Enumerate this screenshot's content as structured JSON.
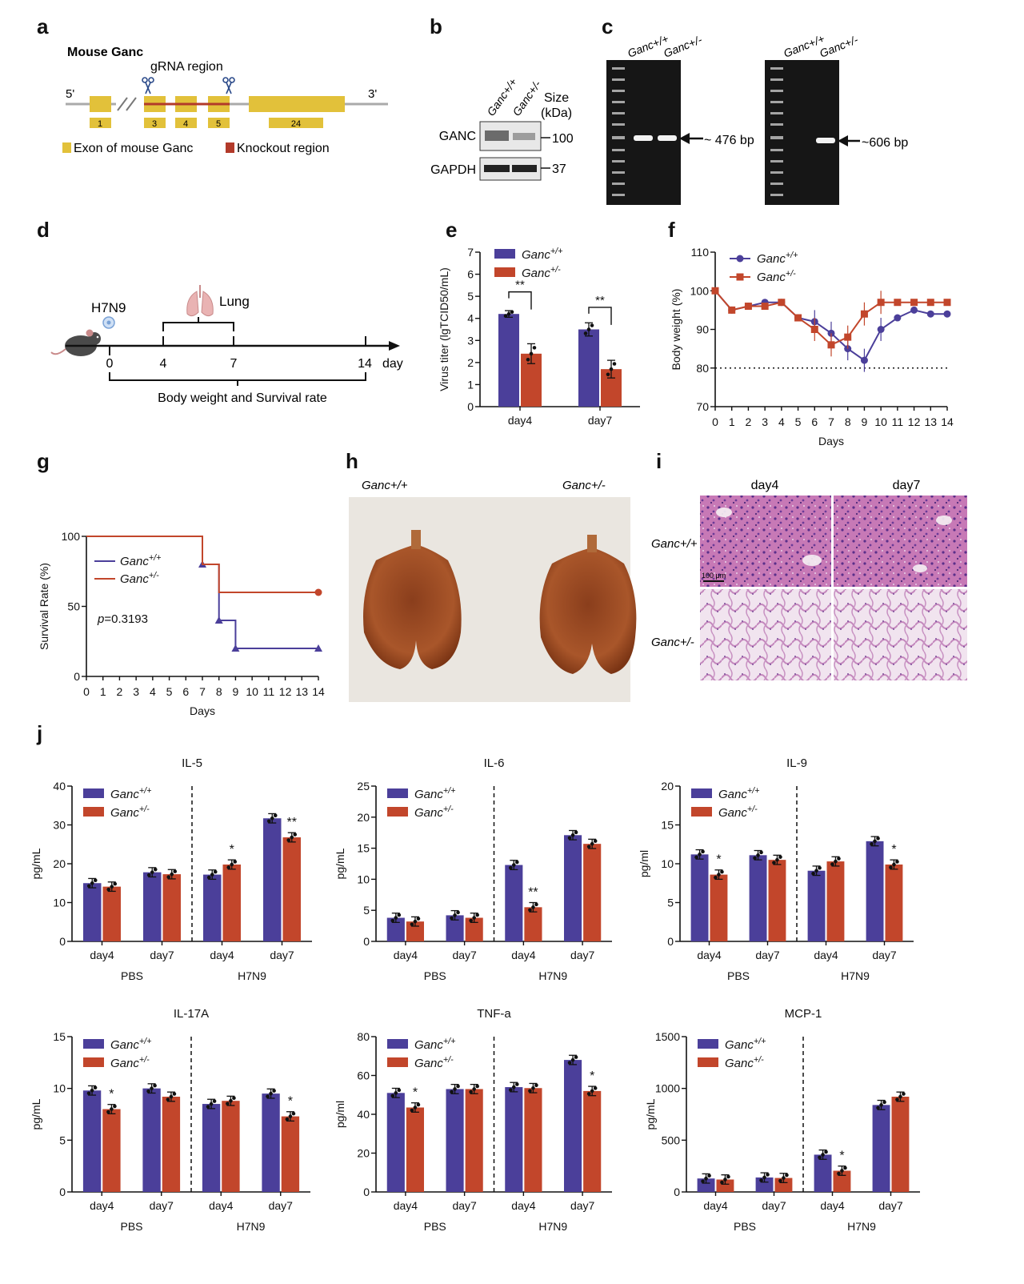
{
  "colors": {
    "wt": "#4b3f9a",
    "het": "#c2462b",
    "gel": "#161616",
    "band": "#f2f2f2"
  },
  "panel_labels": [
    "a",
    "b",
    "c",
    "d",
    "e",
    "f",
    "g",
    "h",
    "i",
    "j"
  ],
  "panel_a": {
    "title": "Mouse Ganc",
    "grna_label": "gRNA region",
    "five_prime": "5'",
    "three_prime": "3'",
    "exon_labels": [
      "1",
      "3",
      "4",
      "5",
      "24"
    ],
    "legend_exon": "Exon of  mouse Ganc",
    "legend_ko": "Knockout region"
  },
  "panel_b": {
    "lane_labels": [
      "Ganc+/+",
      "Ganc+/-"
    ],
    "size_header": [
      "Size",
      "(kDa)"
    ],
    "rows": [
      {
        "protein": "GANC",
        "size": "100"
      },
      {
        "protein": "GAPDH",
        "size": "37"
      }
    ]
  },
  "panel_c": {
    "gels": [
      {
        "lane_labels": [
          "Ganc+/+",
          "Ganc+/-"
        ],
        "band_label": "~ 476 bp"
      },
      {
        "lane_labels": [
          "Ganc+/+",
          "Ganc+/-"
        ],
        "band_label": "~606 bp"
      }
    ]
  },
  "panel_d": {
    "virus": "H7N9",
    "organ": "Lung",
    "ticks": [
      "0",
      "4",
      "7",
      "14"
    ],
    "unit": "day",
    "caption": "Body weight and Survival rate"
  },
  "genotype": {
    "base": "Ganc",
    "wt_sup": "+/+",
    "het_sup": "+/-"
  },
  "panel_h": {
    "labels": [
      "Ganc+/+",
      "Ganc+/-"
    ]
  },
  "panel_i": {
    "cols": [
      "day4",
      "day7"
    ],
    "rows": [
      "Ganc+/+",
      "Ganc+/-"
    ],
    "scale_bar": "100 μm"
  },
  "panel_j": {
    "group_labels": [
      "PBS",
      "H7N9"
    ]
  },
  "chart_data": [
    {
      "id": "e",
      "type": "bar",
      "title": "",
      "ylabel": "Virus titer (lgTCID50/mL)",
      "categories": [
        "day4",
        "day7"
      ],
      "series": [
        {
          "name": "Ganc+/+",
          "values": [
            4.2,
            3.5
          ]
        },
        {
          "name": "Ganc+/-",
          "values": [
            2.4,
            1.7
          ]
        }
      ],
      "errors": [
        [
          0.15,
          0.3
        ],
        [
          0.45,
          0.4
        ]
      ],
      "ylim": [
        0,
        7
      ],
      "yticks": [
        0,
        1,
        2,
        3,
        4,
        5,
        6,
        7
      ],
      "significance": [
        {
          "category": "day4",
          "label": "**"
        },
        {
          "category": "day7",
          "label": "**"
        }
      ]
    },
    {
      "id": "f",
      "type": "line",
      "title": "",
      "xlabel": "Days",
      "ylabel": "Body weight (%)",
      "x": [
        0,
        1,
        2,
        3,
        4,
        5,
        6,
        7,
        8,
        9,
        10,
        11,
        12,
        13,
        14
      ],
      "series": [
        {
          "name": "Ganc+/+",
          "values": [
            100,
            95,
            96,
            97,
            97,
            93,
            92,
            89,
            85,
            82,
            90,
            93,
            95,
            94,
            94
          ]
        },
        {
          "name": "Ganc+/-",
          "values": [
            100,
            95,
            96,
            96,
            97,
            93,
            90,
            86,
            88,
            94,
            97,
            97,
            97,
            97,
            97
          ]
        }
      ],
      "ylim": [
        70,
        110
      ],
      "yticks": [
        70,
        80,
        90,
        100,
        110
      ],
      "reference_line": 80
    },
    {
      "id": "g",
      "type": "line",
      "title": "",
      "xlabel": "Days",
      "ylabel": "Survival Rate (%)",
      "x": [
        0,
        1,
        2,
        3,
        4,
        5,
        6,
        7,
        8,
        9,
        10,
        11,
        12,
        13,
        14
      ],
      "series": [
        {
          "name": "Ganc+/+",
          "steps": [
            [
              0,
              100
            ],
            [
              7,
              80
            ],
            [
              8,
              40
            ],
            [
              9,
              20
            ],
            [
              14,
              20
            ]
          ]
        },
        {
          "name": "Ganc+/-",
          "steps": [
            [
              0,
              100
            ],
            [
              7,
              80
            ],
            [
              8,
              60
            ],
            [
              14,
              60
            ]
          ]
        }
      ],
      "ylim": [
        0,
        100
      ],
      "yticks": [
        0,
        50,
        100
      ],
      "annotation": "p=0.3193"
    },
    {
      "id": "j-il5",
      "type": "bar",
      "title": "IL-5",
      "ylabel": "pg/mL",
      "categories": [
        "day4",
        "day7",
        "day4",
        "day7"
      ],
      "series": [
        {
          "name": "Ganc+/+",
          "values": [
            15,
            17.8,
            17.2,
            31.7
          ]
        },
        {
          "name": "Ganc+/-",
          "values": [
            14.1,
            17.3,
            19.8,
            26.8
          ]
        }
      ],
      "ylim": [
        0,
        40
      ],
      "yticks": [
        0,
        10,
        20,
        30,
        40
      ],
      "significance": [
        "",
        "",
        "*",
        "**"
      ]
    },
    {
      "id": "j-il6",
      "type": "bar",
      "title": "IL-6",
      "ylabel": "pg/mL",
      "categories": [
        "day4",
        "day7",
        "day4",
        "day7"
      ],
      "series": [
        {
          "name": "Ganc+/+",
          "values": [
            3.8,
            4.2,
            12.3,
            17.1
          ]
        },
        {
          "name": "Ganc+/-",
          "values": [
            3.2,
            3.8,
            5.5,
            15.7
          ]
        }
      ],
      "ylim": [
        0,
        25
      ],
      "yticks": [
        0,
        5,
        10,
        15,
        20,
        25
      ],
      "significance": [
        "",
        "",
        "**",
        ""
      ]
    },
    {
      "id": "j-il9",
      "type": "bar",
      "title": "IL-9",
      "ylabel": "pg/ml",
      "categories": [
        "day4",
        "day7",
        "day4",
        "day7"
      ],
      "series": [
        {
          "name": "Ganc+/+",
          "values": [
            11.2,
            11.1,
            9.1,
            12.9
          ]
        },
        {
          "name": "Ganc+/-",
          "values": [
            8.6,
            10.5,
            10.3,
            9.9
          ]
        }
      ],
      "ylim": [
        0,
        20
      ],
      "yticks": [
        0,
        5,
        10,
        15,
        20
      ],
      "significance": [
        "*",
        "",
        "",
        "*"
      ]
    },
    {
      "id": "j-il17a",
      "type": "bar",
      "title": "IL-17A",
      "ylabel": "pg/mL",
      "categories": [
        "day4",
        "day7",
        "day4",
        "day7"
      ],
      "series": [
        {
          "name": "Ganc+/+",
          "values": [
            9.8,
            10,
            8.5,
            9.5
          ]
        },
        {
          "name": "Ganc+/-",
          "values": [
            8,
            9.2,
            8.8,
            7.3
          ]
        }
      ],
      "ylim": [
        0,
        15
      ],
      "yticks": [
        0,
        5,
        10,
        15
      ],
      "significance": [
        "*",
        "",
        "",
        "*"
      ]
    },
    {
      "id": "j-tnfa",
      "type": "bar",
      "title": "TNF-a",
      "ylabel": "pg/ml",
      "categories": [
        "day4",
        "day7",
        "day4",
        "day7"
      ],
      "series": [
        {
          "name": "Ganc+/+",
          "values": [
            51,
            53,
            54,
            68
          ]
        },
        {
          "name": "Ganc+/-",
          "values": [
            43.5,
            53,
            53.5,
            52
          ]
        }
      ],
      "ylim": [
        0,
        80
      ],
      "yticks": [
        0,
        20,
        40,
        60,
        80
      ],
      "significance": [
        "*",
        "",
        "",
        "*"
      ]
    },
    {
      "id": "j-mcp1",
      "type": "bar",
      "title": "MCP-1",
      "ylabel": "pg/mL",
      "categories": [
        "day4",
        "day7",
        "day4",
        "day7"
      ],
      "series": [
        {
          "name": "Ganc+/+",
          "values": [
            130,
            140,
            360,
            840
          ]
        },
        {
          "name": "Ganc+/-",
          "values": [
            120,
            135,
            205,
            920
          ]
        }
      ],
      "ylim": [
        0,
        1500
      ],
      "yticks": [
        0,
        500,
        1000,
        1500
      ],
      "significance": [
        "",
        "",
        "*",
        ""
      ]
    }
  ]
}
